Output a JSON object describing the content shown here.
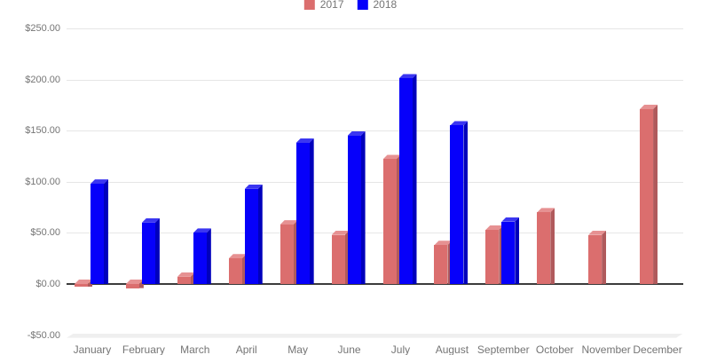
{
  "legend": {
    "items": [
      {
        "label": "2017",
        "color": "#db6e6e"
      },
      {
        "label": "2018",
        "color": "#0600fa"
      }
    ],
    "position": "top-center"
  },
  "chart_data": {
    "type": "bar",
    "title": "",
    "xlabel": "",
    "ylabel": "",
    "categories": [
      "January",
      "February",
      "March",
      "April",
      "May",
      "June",
      "July",
      "August",
      "September",
      "October",
      "November",
      "December"
    ],
    "series": [
      {
        "name": "2017",
        "color": "#db6e6e",
        "color_top": "#e69192",
        "color_side": "#b05a5c",
        "values": [
          -3,
          -4,
          7,
          25,
          58,
          48,
          122,
          38,
          53,
          70,
          48,
          171
        ]
      },
      {
        "name": "2018",
        "color": "#0600fa",
        "color_top": "#3b36f1",
        "color_side": "#0000bc",
        "values": [
          98,
          60,
          50,
          93,
          138,
          145,
          201,
          155,
          61,
          0,
          0,
          0
        ]
      }
    ],
    "y_axis": {
      "range": [
        -50,
        250
      ],
      "tick_step": 50,
      "format": "currency",
      "ticks": [
        {
          "value": 250,
          "label": "$250.00"
        },
        {
          "value": 200,
          "label": "$200.00"
        },
        {
          "value": 150,
          "label": "$150.00"
        },
        {
          "value": 100,
          "label": "$100.00"
        },
        {
          "value": 50,
          "label": "$50.00"
        },
        {
          "value": 0,
          "label": "$0.00"
        },
        {
          "value": -50,
          "label": "-$50.00"
        }
      ]
    },
    "grid": true,
    "baseline_value": 0,
    "legend_position": "top-center",
    "style_3d": true
  },
  "style": {
    "background": "#ffffff",
    "gridline_color": "#e6e6e6",
    "baseline_color": "#3c3c3c",
    "floor_band_color": "#efefef",
    "axis_label_color": "#757575"
  }
}
